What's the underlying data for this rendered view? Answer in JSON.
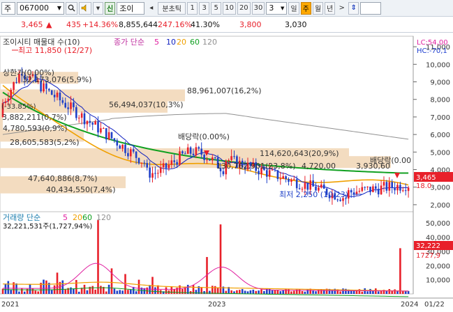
{
  "toolbar": {
    "market": "주",
    "code": "067000",
    "name_tag": "신",
    "name": "조이",
    "period_label": "분초틱",
    "periods": [
      "1",
      "3",
      "5",
      "10",
      "20",
      "30"
    ],
    "count": "3",
    "day": "일",
    "week": "주",
    "month": "월",
    "year": "년",
    "nav_prev": "◂",
    "nav_next": ">",
    "updown": "⇕"
  },
  "quote": {
    "price": "3,465",
    "arrow": "▲",
    "change": "435",
    "change_pct": "+14.36%",
    "volume": "8,855,644",
    "volume_pct": "247.16%",
    "turnover": "41.30%",
    "high": "3,800",
    "low": "3,030"
  },
  "chart": {
    "title": "조이시티 매물대 수(10)",
    "legend_prefix": "종가 단순",
    "ma": [
      "5",
      "10",
      "20",
      "60",
      "120"
    ],
    "lc_label": "LC:54,00",
    "hc_label": "HC:-70,1",
    "price_axis": [
      "11,000",
      "10,000",
      "9,000",
      "8,000",
      "7,000",
      "6,000",
      "5,000",
      "4,000",
      "3,000",
      "2,000"
    ],
    "current_price_tag": "3,465",
    "current_pct_tag": "18.0",
    "annotations": {
      "high": "최고 11,850 (12/27)",
      "low": "최저 2,250 (10/23)",
      "upper_limit": "상한가(0.00%)",
      "dividend1": "배당락(0.00%)",
      "dividend2": "배당락(0.00",
      "pct_small": "(-33.85%)"
    },
    "volume_profile": [
      "32,173,076(5,9%)",
      "88,961,007(16,2%)",
      "56,494,037(10,3%)",
      "3,882,211(0,7%)",
      "4,780,593(0,9%)",
      "28,605,583(5,2%)",
      "114,620,643(20,9%)",
      "130,762,901(23,8%)",
      "4,720,00",
      "3,930,60",
      "47,640,886(8,7%)",
      "40,434,550(7,4%)"
    ]
  },
  "volume": {
    "title": "거래량 단순",
    "ma": [
      "5",
      "20",
      "60",
      "120"
    ],
    "last": "32,221,531주(1,727,94%)",
    "axis": [
      "50,000",
      "40,000",
      "30,000",
      "20,000",
      "10,000"
    ],
    "cur_tag": "32,222",
    "cur_tag2": "1727,9"
  },
  "xaxis": {
    "labels": [
      "2021",
      "2023",
      "2024",
      "01/22"
    ]
  },
  "colors": {
    "up": "#e8202a",
    "down": "#1e40c8",
    "ma5": "#e020a0",
    "ma10": "#1020c0",
    "ma20": "#f0a000",
    "ma60": "#10a020",
    "ma120": "#909090",
    "profile": "#f3dcc0"
  }
}
